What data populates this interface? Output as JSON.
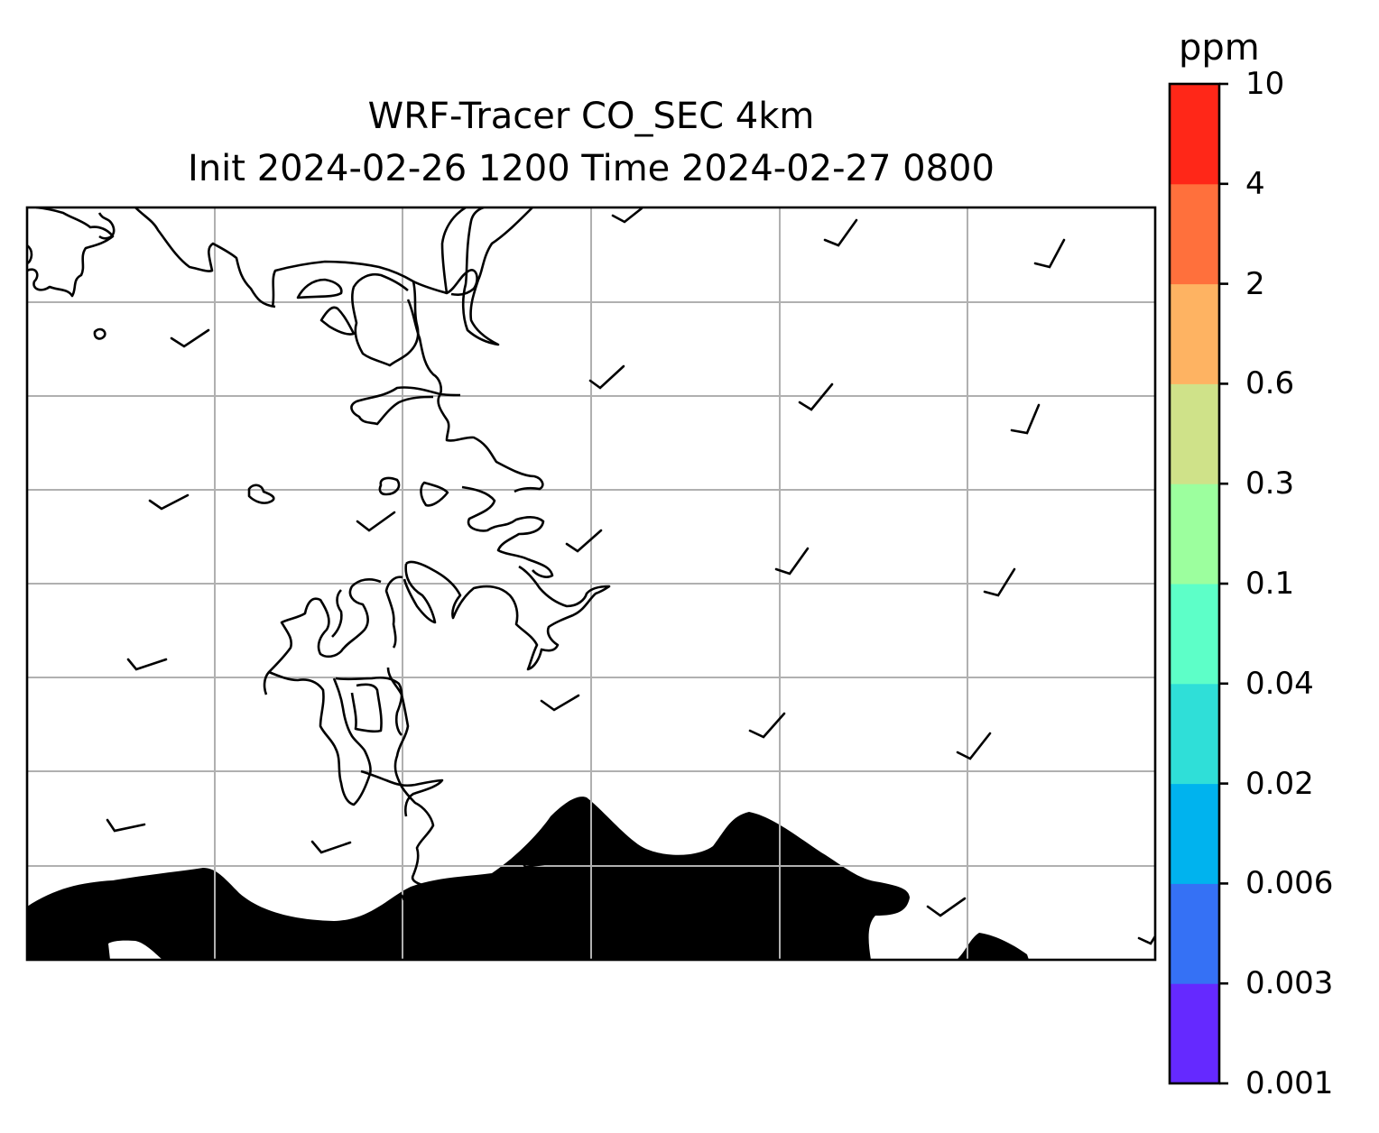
{
  "title": {
    "line1": "WRF-Tracer CO_SEC 4km",
    "line2": "Init 2024-02-26 1200 Time 2024-02-27 0800"
  },
  "colorbar": {
    "unit": "ppm",
    "levels": [
      "0.001",
      "0.003",
      "0.006",
      "0.02",
      "0.04",
      "0.1",
      "0.3",
      "0.6",
      "2",
      "4",
      "10"
    ],
    "colors": [
      "#6529ff",
      "#3571f5",
      "#00b3ee",
      "#2fdfd8",
      "#5dffc8",
      "#9cff9e",
      "#cfe289",
      "#feb362",
      "#ff703c",
      "#ff2718"
    ]
  },
  "map": {
    "gridlines": true,
    "coastline_color": "#000000",
    "gridline_color": "#b0b0b0",
    "tracer_fill_color": "#6529ff",
    "wind_barb_color": "#000000"
  }
}
